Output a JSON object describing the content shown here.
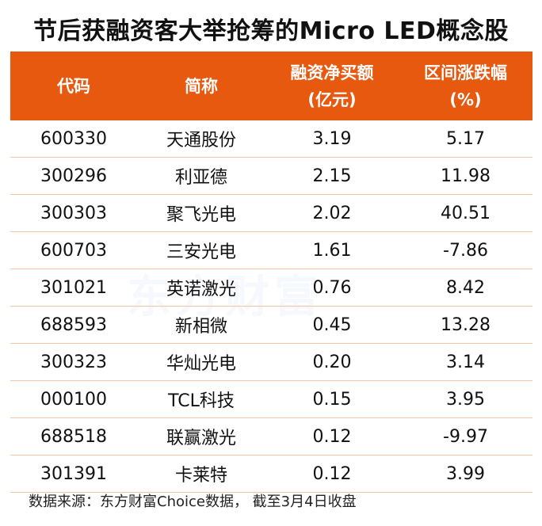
{
  "title": "节后获融资客大举抢筹的Micro LED概念股",
  "watermark": "东方财富",
  "chart_data": {
    "type": "table",
    "title": "节后获融资客大举抢筹的Micro LED概念股",
    "columns": [
      "代码",
      "简称",
      "融资净买额\n(亿元)",
      "区间涨跌幅\n(%)"
    ],
    "header": {
      "c1": "代码",
      "c2": "简称",
      "c3a": "融资净买额",
      "c3b": "(亿元)",
      "c4a": "区间涨跌幅",
      "c4b": "(%)"
    },
    "rows": [
      [
        "600330",
        "天通股份",
        "3.19",
        "5.17"
      ],
      [
        "300296",
        "利亚德",
        "2.15",
        "11.98"
      ],
      [
        "300303",
        "聚飞光电",
        "2.02",
        "40.51"
      ],
      [
        "600703",
        "三安光电",
        "1.61",
        "-7.86"
      ],
      [
        "301021",
        "英诺激光",
        "0.76",
        "8.42"
      ],
      [
        "688593",
        "新相微",
        "0.45",
        "13.28"
      ],
      [
        "300323",
        "华灿光电",
        "0.20",
        "3.14"
      ],
      [
        "000100",
        "TCL科技",
        "0.15",
        "3.95"
      ],
      [
        "688518",
        "联赢激光",
        "0.12",
        "-9.97"
      ],
      [
        "301391",
        "卡莱特",
        "0.12",
        "3.99"
      ]
    ],
    "header_color": "#E6590F",
    "divider_color": "#F2C6A4"
  },
  "footer": "数据来源：东方财富Choice数据， 截至3月4日收盘"
}
